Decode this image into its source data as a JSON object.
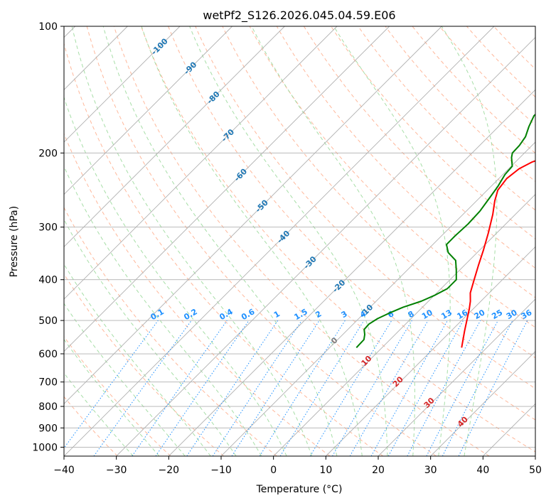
{
  "chart_data": {
    "type": "line",
    "subtype": "skew-T log-P diagram",
    "title": "wetPf2_S126.2026.045.04.59.E06",
    "xlabel": "Temperature (°C)",
    "ylabel": "Pressure (hPa)",
    "xlim": [
      -40,
      50
    ],
    "ylim": [
      1050,
      100
    ],
    "x_ticks": [
      -40,
      -30,
      -20,
      -10,
      0,
      10,
      20,
      30,
      40,
      50
    ],
    "y_ticks": [
      100,
      200,
      300,
      400,
      500,
      600,
      700,
      800,
      900,
      1000
    ],
    "y_tick_labels": [
      "100",
      "200",
      "300",
      "400",
      "500",
      "600",
      "700",
      "800",
      "900",
      "1000"
    ],
    "x_tick_labels": [
      "−40",
      "−30",
      "−20",
      "−10",
      "0",
      "10",
      "20",
      "30",
      "40",
      "50"
    ],
    "grid": true,
    "series": [
      {
        "name": "Temperature",
        "color": "#ff0000",
        "points": [
          {
            "p": 580,
            "t": 15.2
          },
          {
            "p": 530,
            "t": 12.6
          },
          {
            "p": 500,
            "t": 11.0
          },
          {
            "p": 470,
            "t": 9.3
          },
          {
            "p": 450,
            "t": 8.0
          },
          {
            "p": 430,
            "t": 6.4
          },
          {
            "p": 400,
            "t": 4.6
          },
          {
            "p": 370,
            "t": 2.7
          },
          {
            "p": 340,
            "t": 0.7
          },
          {
            "p": 310,
            "t": -1.6
          },
          {
            "p": 280,
            "t": -4.3
          },
          {
            "p": 260,
            "t": -6.5
          },
          {
            "p": 245,
            "t": -8.0
          },
          {
            "p": 230,
            "t": -8.5
          },
          {
            "p": 218,
            "t": -8.0
          },
          {
            "p": 210,
            "t": -6.8
          },
          {
            "p": 203,
            "t": -4.5
          },
          {
            "p": 195,
            "t": -2.5
          },
          {
            "p": 187,
            "t": -1.0
          },
          {
            "p": 180,
            "t": 1.0
          },
          {
            "p": 172,
            "t": 3.4
          },
          {
            "p": 165,
            "t": 5.3
          },
          {
            "p": 155,
            "t": 7.2
          },
          {
            "p": 145,
            "t": 9.8
          },
          {
            "p": 135,
            "t": 12.3
          },
          {
            "p": 125,
            "t": 15.7
          },
          {
            "p": 118,
            "t": 18.0
          },
          {
            "p": 112,
            "t": 18.4
          },
          {
            "p": 105,
            "t": 18.6
          },
          {
            "p": 100,
            "t": 18.9
          }
        ]
      },
      {
        "name": "Dewpoint",
        "color": "#008000",
        "points": [
          {
            "p": 580,
            "t": -4.9
          },
          {
            "p": 555,
            "t": -5.0
          },
          {
            "p": 540,
            "t": -5.8
          },
          {
            "p": 525,
            "t": -6.9
          },
          {
            "p": 510,
            "t": -7.0
          },
          {
            "p": 495,
            "t": -6.4
          },
          {
            "p": 480,
            "t": -5.2
          },
          {
            "p": 465,
            "t": -3.7
          },
          {
            "p": 450,
            "t": -1.4
          },
          {
            "p": 435,
            "t": 0.1
          },
          {
            "p": 420,
            "t": 1.2
          },
          {
            "p": 400,
            "t": 1.2
          },
          {
            "p": 380,
            "t": -0.6
          },
          {
            "p": 360,
            "t": -2.6
          },
          {
            "p": 345,
            "t": -5.5
          },
          {
            "p": 330,
            "t": -7.4
          },
          {
            "p": 315,
            "t": -7.4
          },
          {
            "p": 295,
            "t": -7.2
          },
          {
            "p": 275,
            "t": -7.4
          },
          {
            "p": 255,
            "t": -8.1
          },
          {
            "p": 240,
            "t": -8.7
          },
          {
            "p": 225,
            "t": -9.6
          },
          {
            "p": 215,
            "t": -9.8
          },
          {
            "p": 205,
            "t": -11.6
          },
          {
            "p": 200,
            "t": -12.3
          },
          {
            "p": 192,
            "t": -12.4
          },
          {
            "p": 183,
            "t": -12.9
          },
          {
            "p": 173,
            "t": -14.2
          },
          {
            "p": 163,
            "t": -15.3
          },
          {
            "p": 155,
            "t": -15.0
          },
          {
            "p": 145,
            "t": -14.8
          },
          {
            "p": 135,
            "t": -15.0
          },
          {
            "p": 125,
            "t": -14.6
          },
          {
            "p": 118,
            "t": -13.7
          },
          {
            "p": 111,
            "t": -12.5
          },
          {
            "p": 105,
            "t": -12.0
          },
          {
            "p": 100,
            "t": -11.3
          }
        ]
      }
    ],
    "dry_adiabats_k": [
      190,
      200,
      210,
      220,
      230,
      240,
      250,
      260,
      270,
      280,
      290,
      300,
      310,
      320,
      330,
      340,
      350,
      360,
      370,
      380,
      390,
      400,
      410,
      420,
      430,
      440,
      450
    ],
    "moist_adiabats_c": [
      -30,
      -25,
      -20,
      -15,
      -10,
      -5,
      0,
      5,
      10,
      15,
      20,
      25,
      30,
      35
    ],
    "isotherm_labels": [
      "-100",
      "-90",
      "-80",
      "-70",
      "-60",
      "-50",
      "-40",
      "-30",
      "-20",
      "-10"
    ],
    "isotherm_label_values": [
      -100,
      -90,
      -80,
      -70,
      -60,
      -50,
      -40,
      -30,
      -20,
      -10
    ],
    "mixing_ratio_labels": [
      "0.1",
      "0.2",
      "0.4",
      "0.6",
      "1",
      "1.5",
      "2",
      "3",
      "4",
      "6",
      "8",
      "10",
      "13",
      "16",
      "20",
      "25",
      "30",
      "36"
    ],
    "mixing_ratio_values": [
      0.1,
      0.2,
      0.4,
      0.6,
      1,
      1.5,
      2,
      3,
      4,
      6,
      8,
      10,
      13,
      16,
      20,
      25,
      30,
      36
    ],
    "mixing_ratio_label_pressure": 500,
    "warm_isotherm_labels": [
      "0",
      "10",
      "20",
      "30",
      "40"
    ],
    "warm_isotherm_values": [
      0,
      10,
      20,
      30,
      40
    ],
    "warm_isotherm_colors": [
      "#808080",
      "#d62728",
      "#d62728",
      "#d62728",
      "#d62728"
    ],
    "colors": {
      "isotherm_grid": "#b0b0b0",
      "isotherm_label": "#1f77b4",
      "dry_adiabat": "#ffa07a",
      "moist_adiabat": "#98d898",
      "mixing_ratio": "#1e90ff",
      "isotherm_tan": "#d2b48c"
    }
  }
}
